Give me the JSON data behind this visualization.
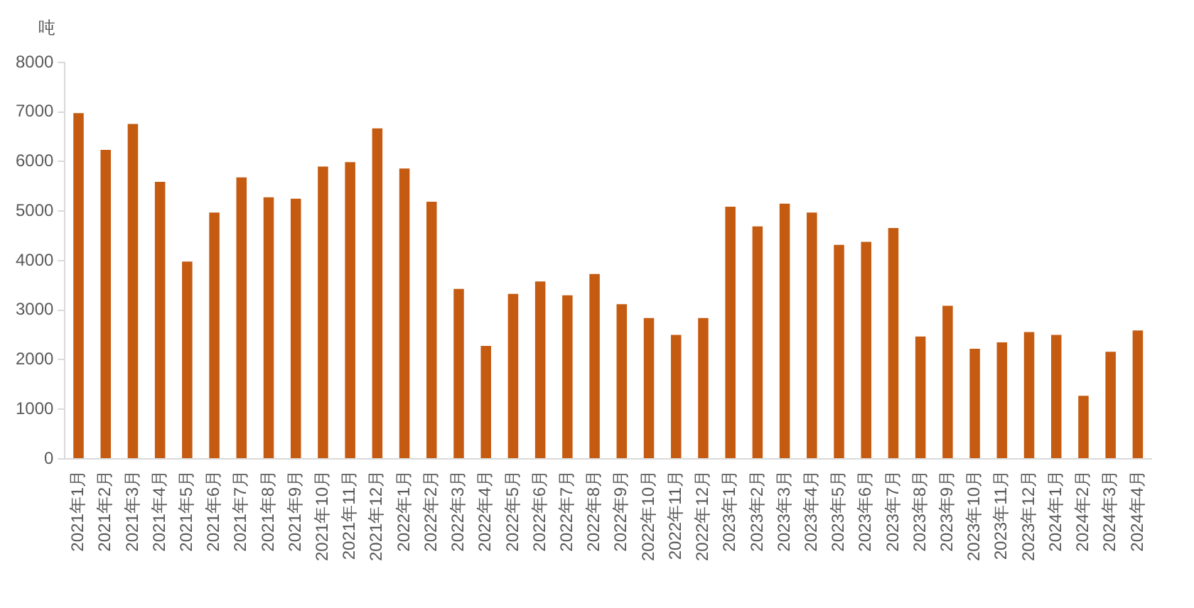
{
  "chart_data": {
    "type": "bar",
    "ylabel": "吨",
    "categories": [
      "2021年1月",
      "2021年2月",
      "2021年3月",
      "2021年4月",
      "2021年5月",
      "2021年6月",
      "2021年7月",
      "2021年8月",
      "2021年9月",
      "2021年10月",
      "2021年11月",
      "2021年12月",
      "2022年1月",
      "2022年2月",
      "2022年3月",
      "2022年4月",
      "2022年5月",
      "2022年6月",
      "2022年7月",
      "2022年8月",
      "2022年9月",
      "2022年10月",
      "2022年11月",
      "2022年12月",
      "2023年1月",
      "2023年2月",
      "2023年3月",
      "2023年4月",
      "2023年5月",
      "2023年6月",
      "2023年7月",
      "2023年8月",
      "2023年9月",
      "2023年10月",
      "2023年11月",
      "2023年12月",
      "2024年1月",
      "2024年2月",
      "2024年3月",
      "2024年4月"
    ],
    "values": [
      6980,
      6235,
      6760,
      5590,
      3980,
      4970,
      5680,
      5280,
      5250,
      5900,
      5990,
      6670,
      5860,
      5190,
      3430,
      2280,
      3330,
      3580,
      3300,
      3730,
      3120,
      2840,
      2500,
      2840,
      5090,
      4690,
      5150,
      4970,
      4320,
      4380,
      4660,
      2470,
      3090,
      2220,
      2350,
      2560,
      2500,
      1270,
      2160,
      2590
    ],
    "color": "#c55a11",
    "ylim": [
      0,
      8000
    ],
    "yticks": [
      0,
      1000,
      2000,
      3000,
      4000,
      5000,
      6000,
      7000,
      8000
    ],
    "grid": false,
    "legend": false
  }
}
